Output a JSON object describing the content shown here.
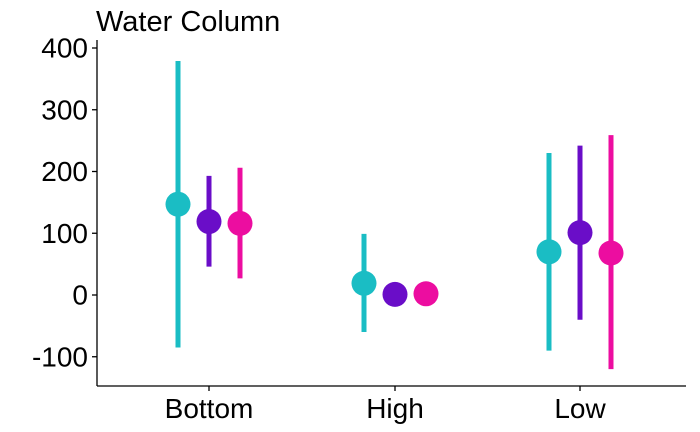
{
  "chart_data": {
    "type": "scatter",
    "title": "Water Column",
    "xlabel": "",
    "ylabel": "",
    "categories": [
      "Bottom",
      "High",
      "Low"
    ],
    "ylim": [
      -145,
      405
    ],
    "yticks": [
      -100,
      0,
      100,
      200,
      300,
      400
    ],
    "ytick_labels": [
      "-100",
      "0",
      "100",
      "200",
      "300",
      "400"
    ],
    "grid": false,
    "legend": "none",
    "series": [
      {
        "color": "#1ABDC4",
        "points": [
          {
            "category": "Bottom",
            "y": 147,
            "ymin": -85,
            "ymax": 379
          },
          {
            "category": "High",
            "y": 19,
            "ymin": -60,
            "ymax": 99
          },
          {
            "category": "Low",
            "y": 70,
            "ymin": -90,
            "ymax": 230
          }
        ]
      },
      {
        "color": "#6A0DC8",
        "points": [
          {
            "category": "Bottom",
            "y": 119,
            "ymin": 46,
            "ymax": 193
          },
          {
            "category": "High",
            "y": 1,
            "ymin": null,
            "ymax": null
          },
          {
            "category": "Low",
            "y": 101,
            "ymin": -40,
            "ymax": 242
          }
        ]
      },
      {
        "color": "#EC0DA0",
        "points": [
          {
            "category": "Bottom",
            "y": 116,
            "ymin": 27,
            "ymax": 206
          },
          {
            "category": "High",
            "y": 2,
            "ymin": null,
            "ymax": null
          },
          {
            "category": "Low",
            "y": 68,
            "ymin": -120,
            "ymax": 259
          }
        ]
      }
    ]
  }
}
